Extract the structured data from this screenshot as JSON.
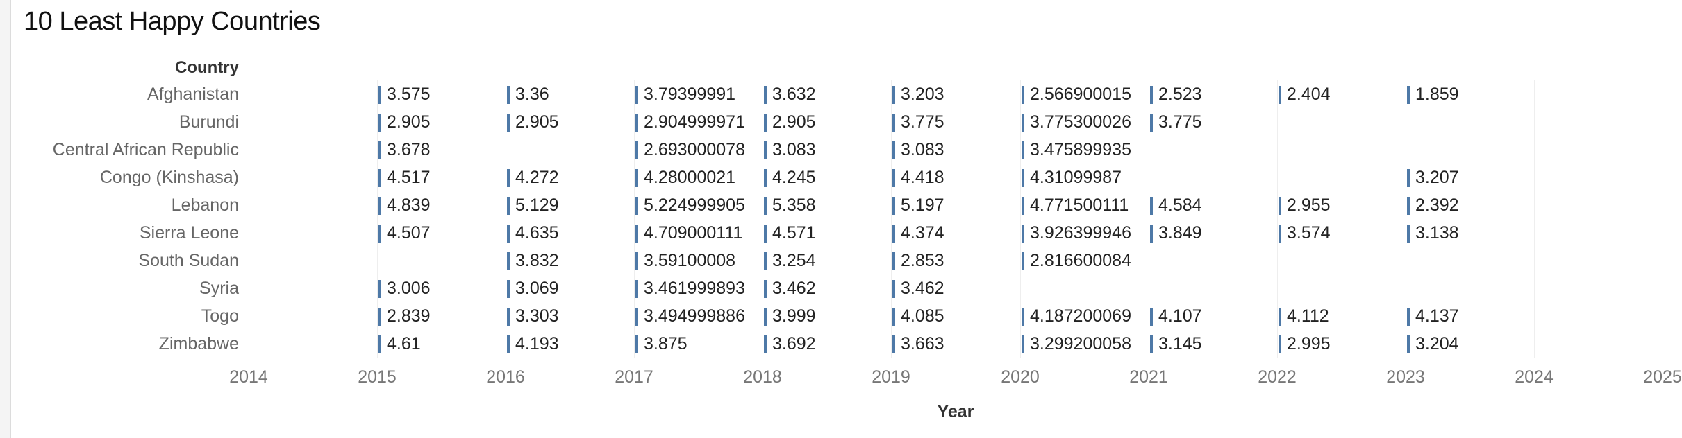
{
  "title": "10 Least Happy Countries",
  "colors": {
    "bar": "#4e79a7",
    "text": "#222222"
  },
  "chart_data": {
    "type": "table",
    "title": "10 Least Happy Countries",
    "row_header": "Country",
    "xlabel": "Year",
    "x_ticks": [
      "2014",
      "2015",
      "2016",
      "2017",
      "2018",
      "2019",
      "2020",
      "2021",
      "2022",
      "2023",
      "2024",
      "2025"
    ],
    "xlim": [
      2014,
      2025
    ],
    "mark": "bar with text label",
    "countries": [
      "Afghanistan",
      "Burundi",
      "Central African Republic",
      "Congo (Kinshasa)",
      "Lebanon",
      "Sierra Leone",
      "South Sudan",
      "Syria",
      "Togo",
      "Zimbabwe"
    ],
    "years": [
      2015,
      2016,
      2017,
      2018,
      2019,
      2020,
      2021,
      2022,
      2023
    ],
    "values": [
      [
        "3.575",
        "3.36",
        "3.79399991",
        "3.632",
        "3.203",
        "2.566900015",
        "2.523",
        "2.404",
        "1.859"
      ],
      [
        "2.905",
        "2.905",
        "2.904999971",
        "2.905",
        "3.775",
        "3.775300026",
        "3.775",
        null,
        null
      ],
      [
        "3.678",
        null,
        "2.693000078",
        "3.083",
        "3.083",
        "3.475899935",
        null,
        null,
        null
      ],
      [
        "4.517",
        "4.272",
        "4.28000021",
        "4.245",
        "4.418",
        "4.31099987",
        null,
        null,
        "3.207"
      ],
      [
        "4.839",
        "5.129",
        "5.224999905",
        "5.358",
        "5.197",
        "4.771500111",
        "4.584",
        "2.955",
        "2.392"
      ],
      [
        "4.507",
        "4.635",
        "4.709000111",
        "4.571",
        "4.374",
        "3.926399946",
        "3.849",
        "3.574",
        "3.138"
      ],
      [
        null,
        "3.832",
        "3.59100008",
        "3.254",
        "2.853",
        "2.816600084",
        null,
        null,
        null
      ],
      [
        "3.006",
        "3.069",
        "3.461999893",
        "3.462",
        "3.462",
        null,
        null,
        null,
        null
      ],
      [
        "2.839",
        "3.303",
        "3.494999886",
        "3.999",
        "4.085",
        "4.187200069",
        "4.107",
        "4.112",
        "4.137"
      ],
      [
        "4.61",
        "4.193",
        "3.875",
        "3.692",
        "3.663",
        "3.299200058",
        "3.145",
        "2.995",
        "3.204"
      ]
    ],
    "grid": true
  }
}
